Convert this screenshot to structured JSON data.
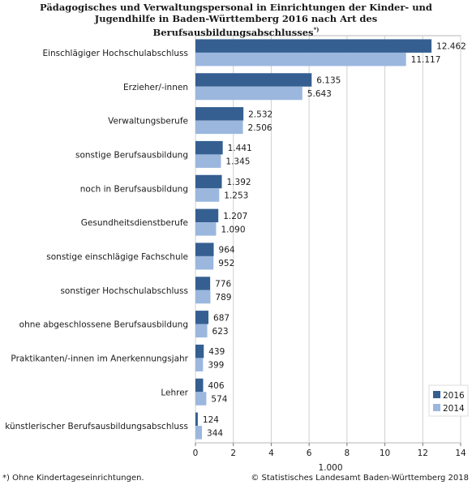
{
  "chart_data": {
    "type": "bar",
    "orientation": "horizontal",
    "title_lines": [
      "Pädagogisches und Verwaltungspersonal in Einrichtungen der Kinder- und",
      "Jugendhilfe in Baden-Württemberg 2016 nach Art des",
      "Berufsausbildungsabschlusses"
    ],
    "title_footnote_mark": "*)",
    "categories": [
      "Einschlägiger Hochschulabschluss",
      "Erzieher/-innen",
      "Verwaltungsberufe",
      "sonstige Berufsausbildung",
      "noch in Berufsausbildung",
      "Gesundheitsdienstberufe",
      "sonstige einschlägige Fachschule",
      "sonstiger Hochschulabschluss",
      "ohne abgeschlossene Berufsausbildung",
      "Praktikanten/-innen im Anerkennungsjahr",
      "Lehrer",
      "künstlerischer Berufsausbildungsabschluss"
    ],
    "series": [
      {
        "name": "2016",
        "color": "#355f91",
        "values": [
          12.462,
          6.135,
          2.532,
          1.441,
          1.392,
          1.207,
          0.964,
          0.776,
          0.687,
          0.439,
          0.406,
          0.124
        ],
        "labels": [
          "12.462",
          "6.135",
          "2.532",
          "1.441",
          "1.392",
          "1.207",
          "964",
          "776",
          "687",
          "439",
          "406",
          "124"
        ]
      },
      {
        "name": "2014",
        "color": "#9bb7de",
        "values": [
          11.117,
          5.643,
          2.506,
          1.345,
          1.253,
          1.09,
          0.952,
          0.789,
          0.623,
          0.399,
          0.574,
          0.344
        ],
        "labels": [
          "11.117",
          "5.643",
          "2.506",
          "1.345",
          "1.253",
          "1.090",
          "952",
          "789",
          "623",
          "399",
          "574",
          "344"
        ]
      }
    ],
    "xlim": [
      0,
      14
    ],
    "xticks": [
      0,
      2,
      4,
      6,
      8,
      10,
      12,
      14
    ],
    "xlabel": "1.000",
    "grid": "vertical",
    "legend_position": "bottom-right"
  },
  "footnote": "*) Ohne Kindertageseinrichtungen.",
  "source": "© Statistisches Landesamt Baden-Württemberg 2018"
}
